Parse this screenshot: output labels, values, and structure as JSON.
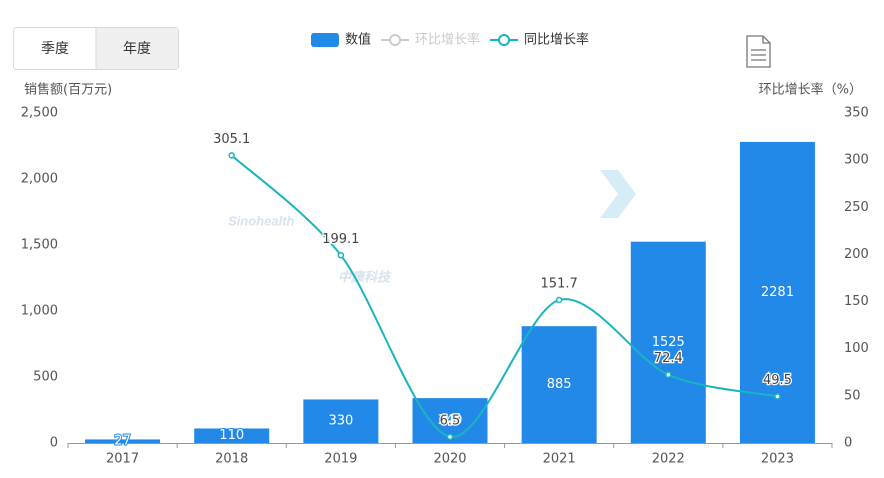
{
  "buttons": [
    "季度",
    "年度"
  ],
  "watermark": [
    "Sinohealth",
    "中康科技"
  ],
  "chart_data": {
    "type": "bar",
    "y_label": "销售额(百万元)",
    "y2_label": "环比增长率（%）",
    "categories": [
      "2017",
      "2018",
      "2019",
      "2020",
      "2021",
      "2022",
      "2023"
    ],
    "series": [
      {
        "name": "数值",
        "type": "bar",
        "color": "#2389e8",
        "values": [
          27,
          110,
          330,
          340,
          885,
          1525,
          2281
        ]
      },
      {
        "name": "环比增长率",
        "type": "line",
        "axis": "y2",
        "color": "#c8c8c8",
        "visible": false,
        "values": [
          null,
          null,
          null,
          null,
          null,
          null,
          null
        ]
      },
      {
        "name": "同比增长率",
        "type": "line",
        "axis": "y2",
        "color": "#1ab5bd",
        "values": [
          null,
          305.1,
          199.1,
          6.5,
          151.7,
          72.4,
          49.5
        ]
      }
    ],
    "ylim": [
      0,
      2500
    ],
    "yticks": [
      0,
      500,
      {
        "value": 1000,
        "label": "1,000"
      },
      {
        "value": 1500,
        "label": "1,500"
      },
      {
        "value": 2000,
        "label": "2,000"
      },
      {
        "value": 2500,
        "label": "2,500"
      }
    ],
    "y2lim": [
      0,
      350
    ],
    "y2ticks": [
      0,
      50,
      100,
      150,
      200,
      250,
      300,
      350
    ]
  }
}
